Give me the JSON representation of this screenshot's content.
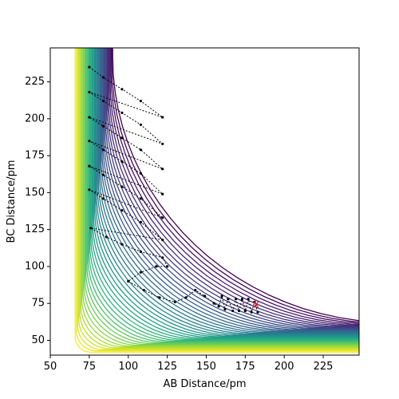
{
  "chart_data": {
    "type": "contour",
    "title": "",
    "xlabel": "AB Distance/pm",
    "ylabel": "BC Distance/pm",
    "xlim": [
      50,
      248
    ],
    "ylim": [
      40,
      248
    ],
    "xticks": [
      50,
      75,
      100,
      125,
      150,
      175,
      200,
      225
    ],
    "yticks": [
      50,
      75,
      100,
      125,
      150,
      175,
      200,
      225
    ],
    "xtick_labels": [
      "50",
      "75",
      "100",
      "125",
      "150",
      "175",
      "200",
      "225"
    ],
    "ytick_labels": [
      "50",
      "75",
      "100",
      "125",
      "150",
      "175",
      "200",
      "225"
    ],
    "colormap": "viridis",
    "colorbar": false,
    "grid": false,
    "trajectory": {
      "color": "#000000",
      "style": "dotted markers",
      "points": [
        [
          75,
          235
        ],
        [
          84,
          228
        ],
        [
          96,
          220
        ],
        [
          108,
          212
        ],
        [
          122,
          201
        ],
        [
          75,
          218
        ],
        [
          84,
          212
        ],
        [
          96,
          204
        ],
        [
          108,
          196
        ],
        [
          122,
          183
        ],
        [
          75,
          201
        ],
        [
          84,
          195
        ],
        [
          96,
          187
        ],
        [
          108,
          179
        ],
        [
          122,
          166
        ],
        [
          75,
          185
        ],
        [
          84,
          179
        ],
        [
          96,
          171
        ],
        [
          108,
          163
        ],
        [
          122,
          149
        ],
        [
          75,
          168
        ],
        [
          84,
          162
        ],
        [
          96,
          154
        ],
        [
          108,
          146
        ],
        [
          122,
          133
        ],
        [
          75,
          152
        ],
        [
          84,
          146
        ],
        [
          96,
          138
        ],
        [
          108,
          130
        ],
        [
          122,
          118
        ],
        [
          76,
          126
        ],
        [
          86,
          120
        ],
        [
          96,
          115
        ],
        [
          108,
          110
        ],
        [
          122,
          106
        ],
        [
          125,
          100
        ],
        [
          118,
          100
        ],
        [
          108,
          96
        ],
        [
          100,
          90
        ],
        [
          110,
          84
        ],
        [
          120,
          79
        ],
        [
          130,
          76
        ],
        [
          137,
          79
        ],
        [
          143,
          84
        ],
        [
          149,
          80
        ],
        [
          155,
          75
        ],
        [
          158,
          73
        ],
        [
          160,
          80
        ],
        [
          162,
          71
        ],
        [
          164,
          78
        ],
        [
          167,
          70
        ],
        [
          169,
          78
        ],
        [
          171,
          70
        ],
        [
          173,
          78
        ],
        [
          175,
          70
        ],
        [
          177,
          78
        ],
        [
          179,
          69
        ],
        [
          181,
          76
        ],
        [
          183,
          69
        ]
      ]
    },
    "markers": [
      {
        "label": "x",
        "x": 182,
        "y": 74,
        "color": "#ff0000"
      }
    ]
  }
}
